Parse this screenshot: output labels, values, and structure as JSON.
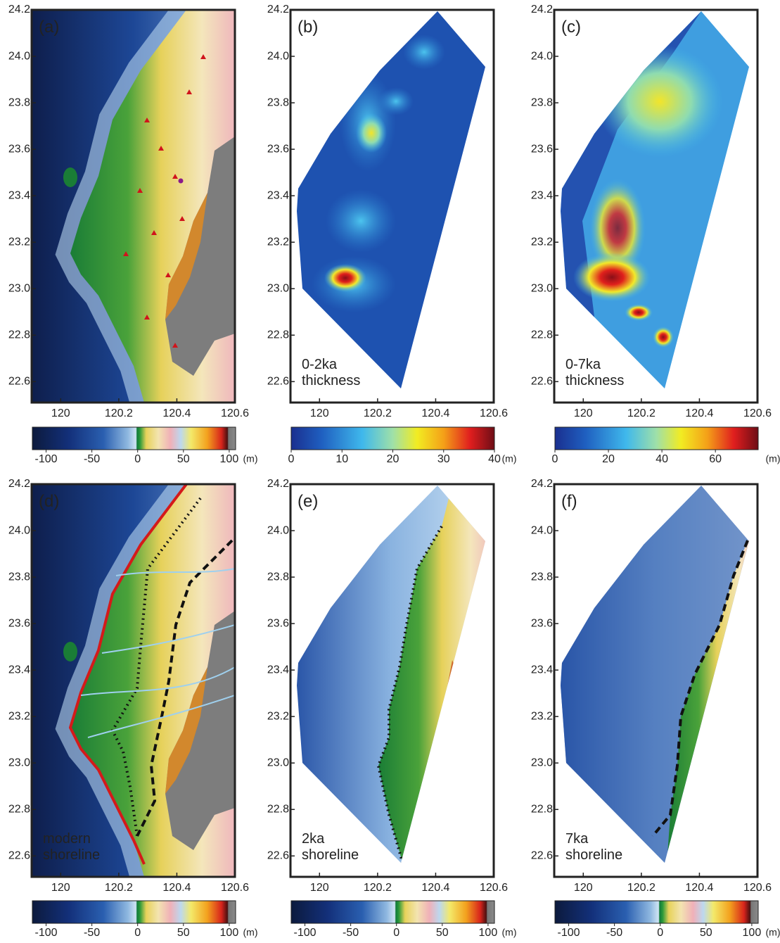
{
  "axes": {
    "xlim": [
      119.9,
      120.6
    ],
    "ylim": [
      22.51,
      24.2
    ],
    "xticks": [
      120,
      120.2,
      120.4,
      120.6
    ],
    "yticks": [
      22.6,
      22.8,
      {
        "value": 23,
        "label": "23.0"
      },
      23.2,
      23.4,
      23.6,
      23.8,
      {
        "value": 24,
        "label": "24.0"
      },
      24.2
    ]
  },
  "panels": [
    {
      "label": "(a)",
      "colorbar": {
        "colormap": "elevation",
        "lim": [
          -115,
          107
        ],
        "ticks": [
          -100,
          -50,
          0,
          50,
          100
        ],
        "unit": "(m)"
      }
    },
    {
      "label": "(b)",
      "annotation": [
        "0-2ka",
        "thickness"
      ],
      "colorbar": {
        "colormap": "thickness",
        "lim": [
          0,
          40
        ],
        "ticks": [
          0,
          10,
          20,
          30,
          40
        ],
        "unit": "(m)"
      }
    },
    {
      "label": "(c)",
      "annotation": [
        "0-7ka",
        "thickness"
      ],
      "colorbar": {
        "colormap": "thickness",
        "lim": [
          0,
          76
        ],
        "ticks": [
          0,
          20,
          40,
          60
        ],
        "unit": "(m)"
      }
    },
    {
      "label": "(d)",
      "annotation": [
        "modern",
        "shoreline"
      ],
      "colorbar": {
        "colormap": "elevation",
        "lim": [
          -115,
          107
        ],
        "ticks": [
          -100,
          -50,
          0,
          50,
          100
        ],
        "unit": "(m)"
      }
    },
    {
      "label": "(e)",
      "annotation": [
        "2ka",
        "shoreline"
      ],
      "colorbar": {
        "colormap": "elevation",
        "lim": [
          -115,
          107
        ],
        "ticks": [
          -100,
          -50,
          0,
          50,
          100
        ],
        "unit": "(m)"
      }
    },
    {
      "label": "(f)",
      "annotation": [
        "7ka",
        "shoreline"
      ],
      "colorbar": {
        "colormap": "elevation",
        "lim": [
          -115,
          107
        ],
        "ticks": [
          -100,
          -50,
          0,
          50,
          100
        ],
        "unit": "(m)"
      }
    }
  ]
}
